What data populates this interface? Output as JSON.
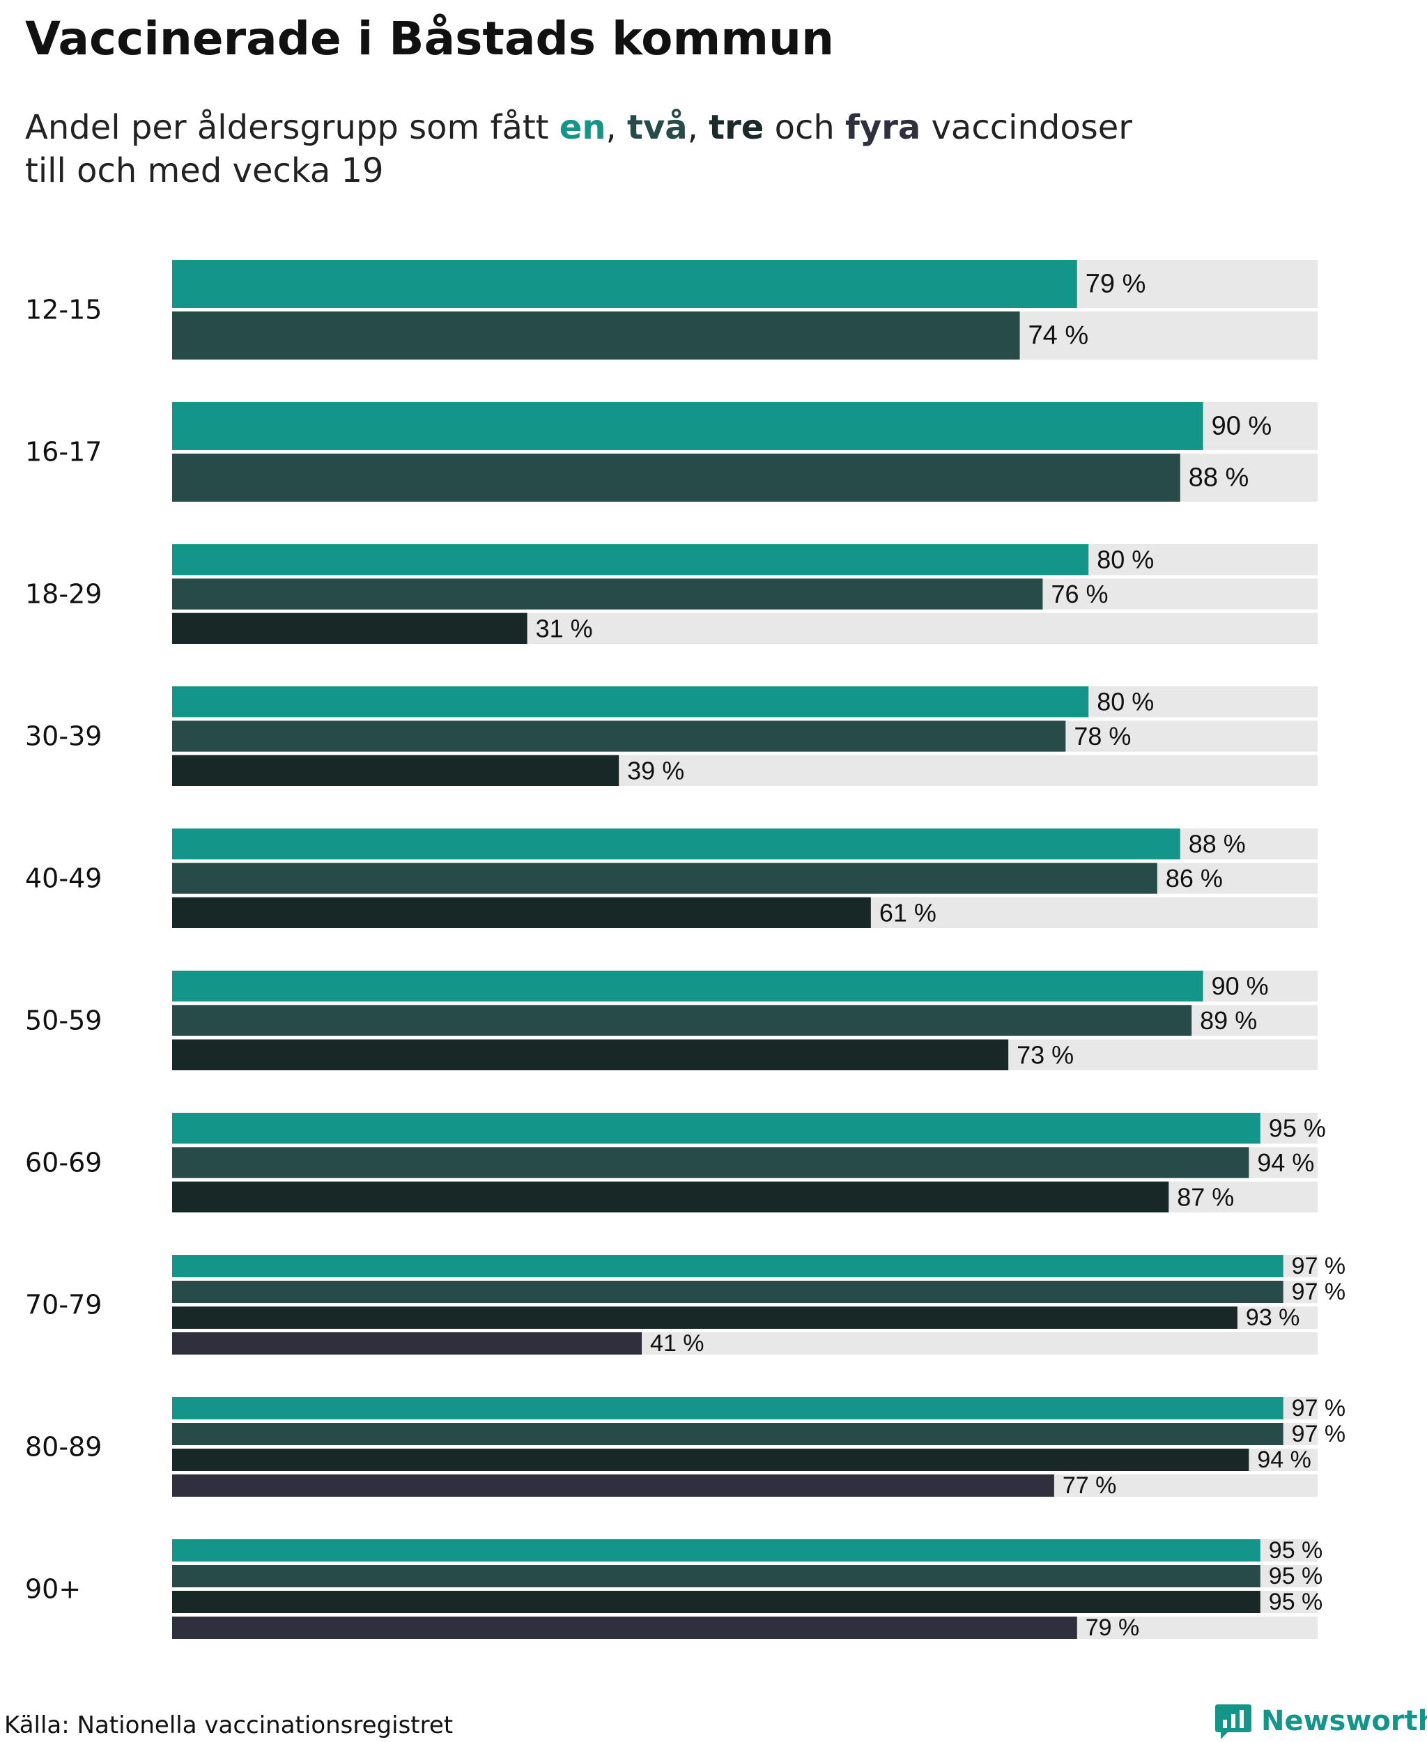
{
  "header": {
    "title": "Vaccinerade i Båstads kommun",
    "subtitle_pre": "Andel per åldersgrupp som fått ",
    "subtitle_k1": "en",
    "subtitle_sep1": ", ",
    "subtitle_k2": "två",
    "subtitle_sep2": ", ",
    "subtitle_k3": "tre",
    "subtitle_mid": " och ",
    "subtitle_k4": "fyra",
    "subtitle_post": " vaccindoser",
    "subtitle_line2": "till och med vecka 19"
  },
  "footer": {
    "source": "Källa: Nationella vaccinationsregistret",
    "brand": "Newsworthy"
  },
  "icons": {
    "brand": "newsworthy-logo-icon"
  },
  "colors": {
    "dose1": "#13958a",
    "dose2": "#264b49",
    "dose3": "#182826",
    "dose4": "#2f2f3d",
    "track": "#e8e8e8",
    "brand": "#13958a"
  },
  "chart_data": {
    "type": "bar",
    "orientation": "horizontal",
    "title": "Vaccinerade i Båstads kommun",
    "subtitle": "Andel per åldersgrupp som fått en, två, tre och fyra vaccindoser till och med vecka 19",
    "xlim": [
      0,
      100
    ],
    "value_suffix": " %",
    "categories": [
      "12-15",
      "16-17",
      "18-29",
      "30-39",
      "40-49",
      "50-59",
      "60-69",
      "70-79",
      "80-89",
      "90+"
    ],
    "series": [
      {
        "values": [
          79,
          90,
          80,
          80,
          88,
          90,
          95,
          97,
          97,
          95
        ]
      },
      {
        "values": [
          74,
          88,
          76,
          78,
          86,
          89,
          94,
          97,
          97,
          95
        ]
      },
      {
        "values": [
          null,
          null,
          31,
          39,
          61,
          73,
          87,
          93,
          94,
          95
        ]
      },
      {
        "values": [
          null,
          null,
          null,
          null,
          null,
          null,
          null,
          41,
          77,
          79
        ]
      }
    ],
    "grid": false,
    "legend": "none"
  }
}
